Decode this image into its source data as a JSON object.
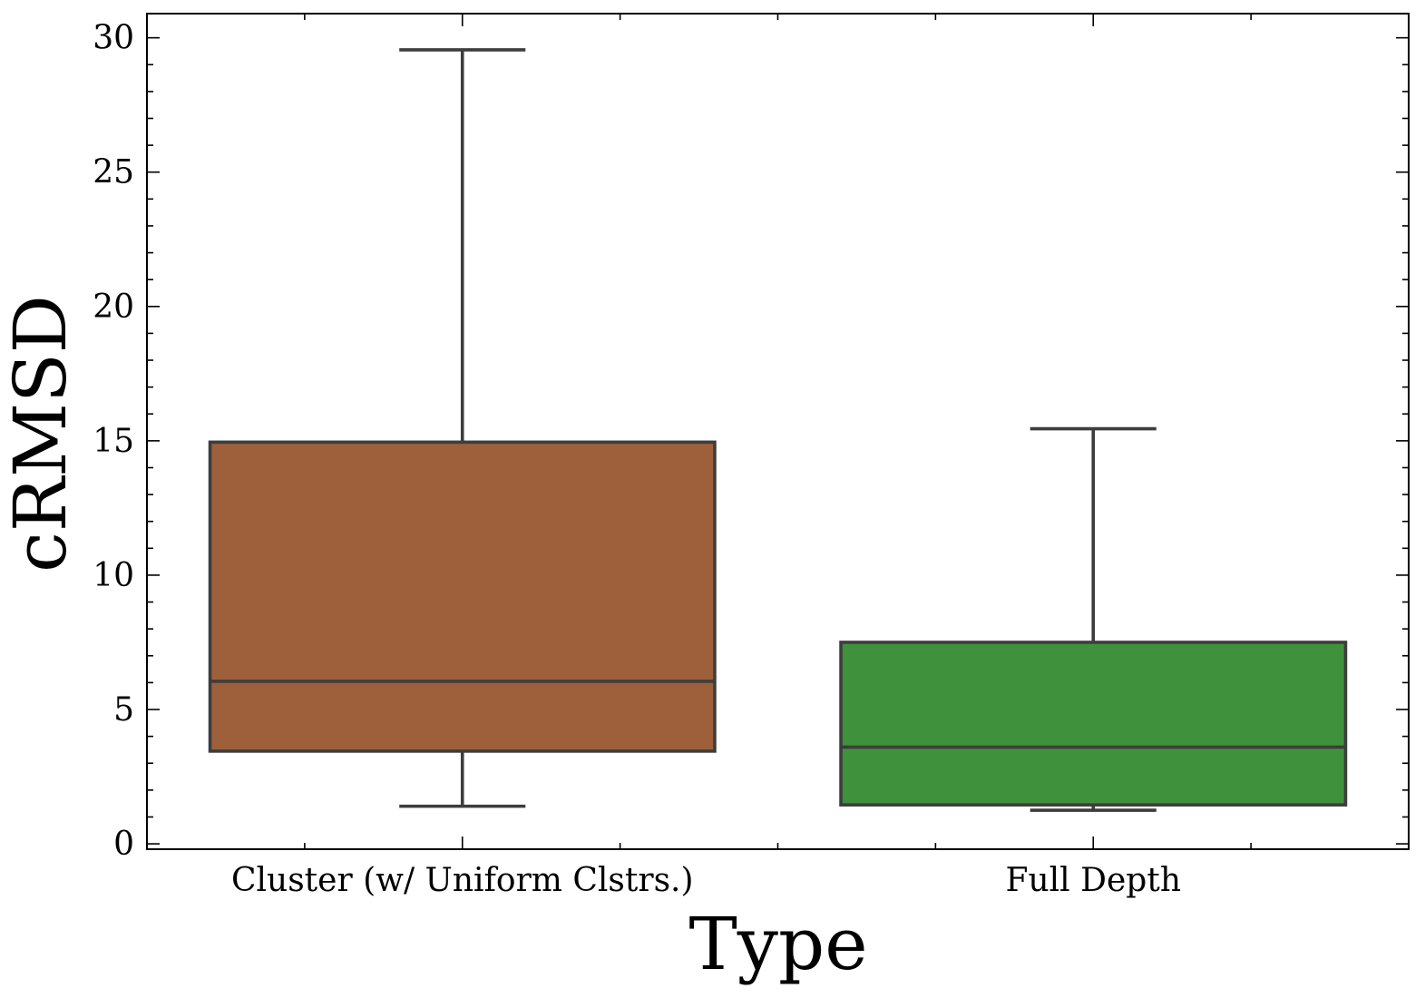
{
  "chart_data": {
    "type": "box",
    "xlabel": "Type",
    "ylabel": "cRMSD",
    "ylim": [
      -0.2,
      30.9
    ],
    "yticks": [
      0,
      5,
      10,
      15,
      20,
      25,
      30
    ],
    "yticks_labels": [
      "0",
      "5",
      "10",
      "15",
      "20",
      "25",
      "30"
    ],
    "categories": [
      "Cluster (w/ Uniform Clstrs.)",
      "Full Depth"
    ],
    "boxes": [
      {
        "category": "Cluster (w/ Uniform Clstrs.)",
        "whisker_low": 1.4,
        "q1": 3.45,
        "median": 6.05,
        "q3": 14.95,
        "whisker_high": 29.55,
        "color": "#9e603a"
      },
      {
        "category": "Full Depth",
        "whisker_low": 1.25,
        "q1": 1.45,
        "median": 3.6,
        "q3": 7.5,
        "whisker_high": 15.45,
        "color": "#3f923b"
      }
    ],
    "line_color": "#3d3d3d",
    "grid": false,
    "legend": "none"
  }
}
